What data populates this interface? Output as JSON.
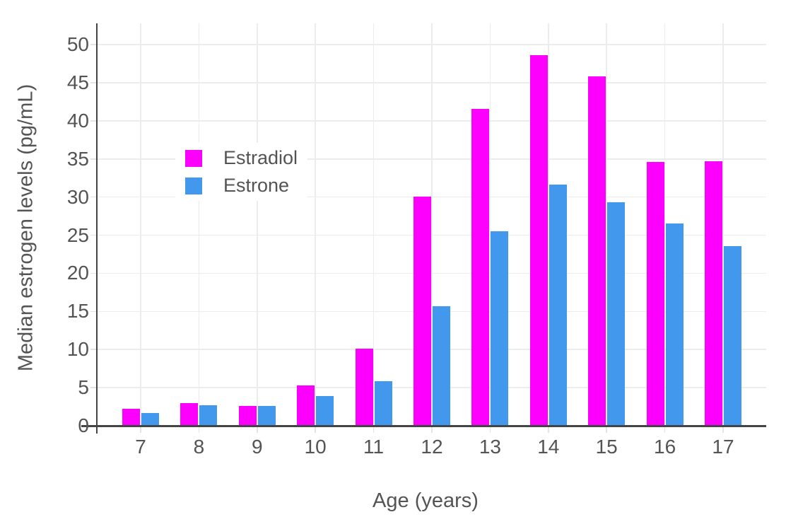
{
  "chart_data": {
    "type": "bar",
    "title": "",
    "xlabel": "Age (years)",
    "ylabel": "Median estrogen levels (pg/mL)",
    "categories": [
      "7",
      "8",
      "9",
      "10",
      "11",
      "12",
      "13",
      "14",
      "15",
      "16",
      "17"
    ],
    "series": [
      {
        "name": "Estradiol",
        "color": "#FD00FD",
        "values": [
          2.2,
          3.0,
          2.6,
          5.3,
          10.1,
          30.1,
          41.6,
          48.6,
          45.8,
          34.6,
          34.7
        ]
      },
      {
        "name": "Estrone",
        "color": "#4298EC",
        "values": [
          1.7,
          2.7,
          2.6,
          3.9,
          5.8,
          15.7,
          25.5,
          31.6,
          29.3,
          26.5,
          23.6
        ]
      }
    ],
    "y_ticks": [
      0,
      5,
      10,
      15,
      20,
      25,
      30,
      35,
      40,
      45,
      50
    ],
    "ylim": [
      0,
      52.8
    ],
    "grid": true,
    "legend_position": "inside-top-left",
    "colors": {
      "axis_line": "#444444",
      "grid": "#ECECEC",
      "tick": "#E4E4E4",
      "text": "#545454",
      "background": "#FFFFFF"
    }
  }
}
